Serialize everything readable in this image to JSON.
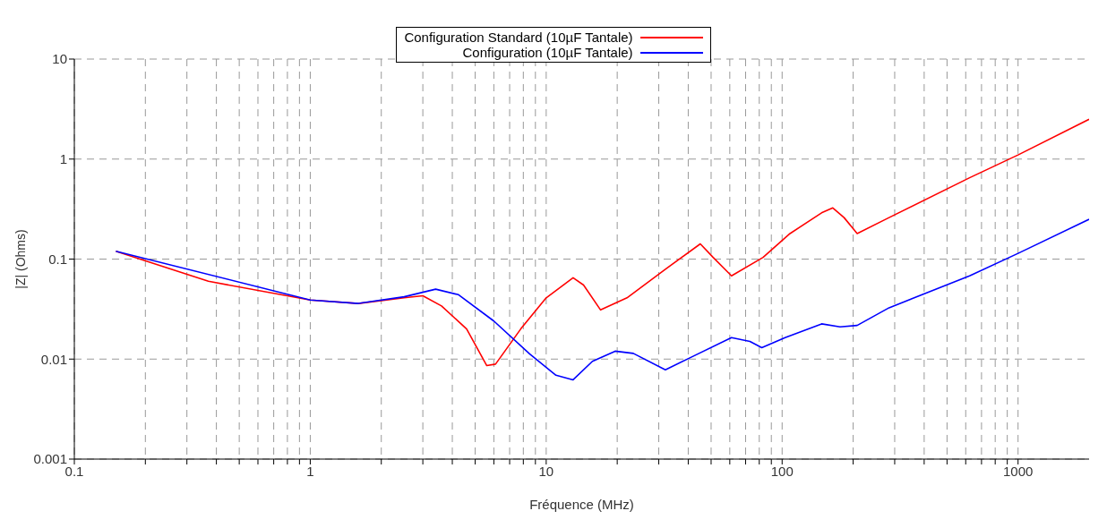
{
  "chart_data": {
    "type": "line",
    "xlabel": "Fréquence (MHz)",
    "ylabel": "|Z| (Ohms)",
    "log": "xy",
    "grid": true,
    "legend": "top",
    "line_style": "solid",
    "marker": "none",
    "xlim": [
      0.1,
      2000
    ],
    "ylim": [
      0.001,
      10
    ],
    "xticks": [
      0.1,
      {
        "value": 0.2,
        "label": null
      },
      {
        "value": 0.3,
        "label": null
      },
      {
        "value": 0.4,
        "label": null
      },
      {
        "value": 0.5,
        "label": null
      },
      {
        "value": 0.6,
        "label": null
      },
      {
        "value": 0.7,
        "label": null
      },
      {
        "value": 0.8,
        "label": null
      },
      {
        "value": 0.9,
        "label": null
      },
      1,
      {
        "value": 2,
        "label": null
      },
      {
        "value": 3,
        "label": null
      },
      {
        "value": 4,
        "label": null
      },
      {
        "value": 5,
        "label": null
      },
      {
        "value": 6,
        "label": null
      },
      {
        "value": 7,
        "label": null
      },
      {
        "value": 8,
        "label": null
      },
      {
        "value": 9,
        "label": null
      },
      10,
      {
        "value": 20,
        "label": null
      },
      {
        "value": 30,
        "label": null
      },
      {
        "value": 40,
        "label": null
      },
      {
        "value": 50,
        "label": null
      },
      {
        "value": 60,
        "label": null
      },
      {
        "value": 70,
        "label": null
      },
      {
        "value": 80,
        "label": null
      },
      {
        "value": 90,
        "label": null
      },
      100,
      {
        "value": 200,
        "label": null
      },
      {
        "value": 300,
        "label": null
      },
      {
        "value": 400,
        "label": null
      },
      {
        "value": 500,
        "label": null
      },
      {
        "value": 600,
        "label": null
      },
      {
        "value": 700,
        "label": null
      },
      {
        "value": 800,
        "label": null
      },
      {
        "value": 900,
        "label": null
      },
      1000
    ],
    "yticks": [
      0.001,
      0.01,
      0.1,
      1,
      10
    ],
    "series": [
      {
        "name": "Configuration Standard (10µF Tantale)",
        "color": "#ff0000",
        "x": [
          0.15,
          0.37,
          1,
          1.6,
          2.5,
          3,
          3.6,
          4.6,
          5.6,
          6.1,
          7.8,
          10,
          13,
          14.4,
          17,
          22,
          32,
          45,
          51,
          61,
          83,
          108,
          147,
          164,
          183,
          208,
          284,
          623,
          1000,
          2000
        ],
        "values": [
          0.12,
          0.06,
          0.039,
          0.036,
          0.041,
          0.043,
          0.034,
          0.02,
          0.0086,
          0.0089,
          0.02,
          0.041,
          0.065,
          0.055,
          0.031,
          0.041,
          0.079,
          0.142,
          0.104,
          0.068,
          0.104,
          0.18,
          0.29,
          0.325,
          0.26,
          0.18,
          0.26,
          0.65,
          1.1,
          2.5
        ]
      },
      {
        "name": "Configuration (10µF Tantale)",
        "color": "#0000ff",
        "x": [
          0.15,
          1,
          1.6,
          2.5,
          3.4,
          4.25,
          6,
          8.5,
          11,
          13,
          15.7,
          19.6,
          23.4,
          32,
          41,
          61,
          73,
          82,
          103,
          147,
          176,
          208,
          284,
          623,
          1000,
          2000
        ],
        "values": [
          0.12,
          0.039,
          0.036,
          0.042,
          0.05,
          0.044,
          0.024,
          0.0113,
          0.0069,
          0.0062,
          0.0095,
          0.012,
          0.0114,
          0.0078,
          0.0104,
          0.0164,
          0.015,
          0.013,
          0.0164,
          0.0225,
          0.021,
          0.0217,
          0.0326,
          0.068,
          0.114,
          0.25
        ]
      }
    ]
  }
}
